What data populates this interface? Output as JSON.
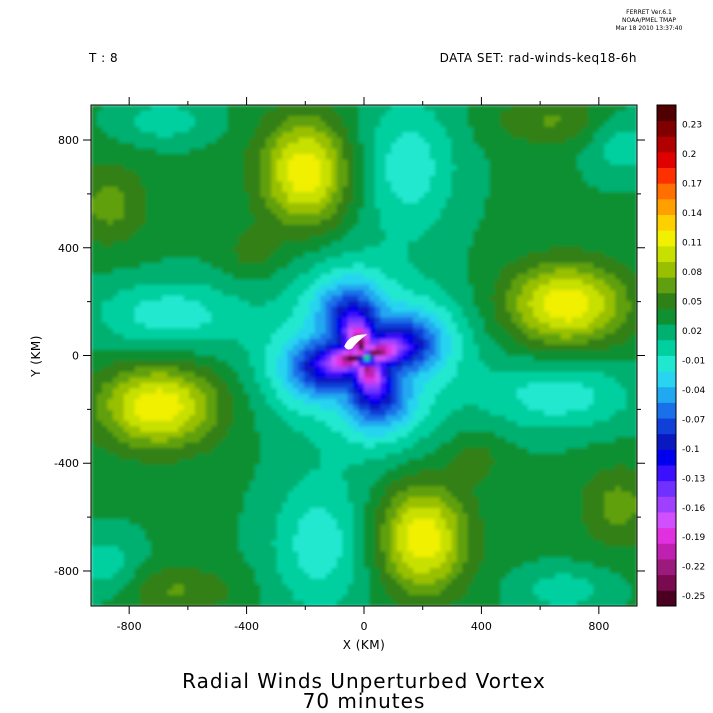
{
  "header": {
    "ferret_version": "FERRET  Ver.6.1",
    "ferret_org": "NOAA/PMEL TMAP",
    "ferret_date": "Mar 18 2010 13:37:40",
    "time_label": "T : 8",
    "dataset_label": "DATA SET: rad-winds-keq18-6h"
  },
  "colors": {
    "palette": [
      "#4a0020",
      "#7a0a50",
      "#9c1a7c",
      "#c020b0",
      "#e030e0",
      "#d050ff",
      "#a040ff",
      "#7030ff",
      "#3a10ff",
      "#0000ee",
      "#0a18c0",
      "#1040d8",
      "#1a70e8",
      "#20a8f0",
      "#28d4f0",
      "#20e8d0",
      "#00d0a0",
      "#00b070",
      "#109030",
      "#308018",
      "#60a010",
      "#98c000",
      "#c8e000",
      "#f0f000",
      "#ffd000",
      "#ffa000",
      "#ff7000",
      "#ff3000",
      "#e00000",
      "#b00000",
      "#800000",
      "#500000"
    ],
    "hole": "#ffffff"
  },
  "chart_data": {
    "type": "heatmap",
    "title": "Radial Winds Unperturbed Vortex",
    "subtitle": "70 minutes",
    "xlabel": "X (KM)",
    "ylabel": "Y (KM)",
    "xlim": [
      -930,
      930
    ],
    "ylim": [
      -930,
      930
    ],
    "x_ticks": [
      -800,
      -400,
      0,
      400,
      800
    ],
    "y_ticks": [
      -800,
      -400,
      0,
      400,
      800
    ],
    "x_tick_labels": [
      "-800",
      "-400",
      "0",
      "400",
      "800"
    ],
    "y_tick_labels": [
      "-800",
      "-400",
      "0",
      "400",
      "800"
    ],
    "colorbar": {
      "vmin": -0.26,
      "vmax": 0.25,
      "levels": 32,
      "tick_labels": [
        "0.23",
        "0.2",
        "0.17",
        "0.14",
        "0.11",
        "0.08",
        "0.05",
        "0.02",
        "-0.01",
        "-0.04",
        "-0.07",
        "-0.1",
        "-0.13",
        "-0.16",
        "-0.19",
        "-0.22",
        "-0.25"
      ],
      "tick_values": [
        0.23,
        0.2,
        0.17,
        0.14,
        0.11,
        0.08,
        0.05,
        0.02,
        -0.01,
        -0.04,
        -0.07,
        -0.1,
        -0.13,
        -0.16,
        -0.19,
        -0.22,
        -0.25
      ]
    },
    "field_features": {
      "background": 0.03,
      "core": {
        "x": 0,
        "y": 20,
        "value": -0.2
      },
      "lobes": [
        {
          "x": -700,
          "y": -190,
          "value": 0.11
        },
        {
          "x": 690,
          "y": 190,
          "value": 0.11
        },
        {
          "x": -200,
          "y": 680,
          "value": 0.11
        },
        {
          "x": 200,
          "y": -680,
          "value": 0.11
        }
      ]
    }
  }
}
